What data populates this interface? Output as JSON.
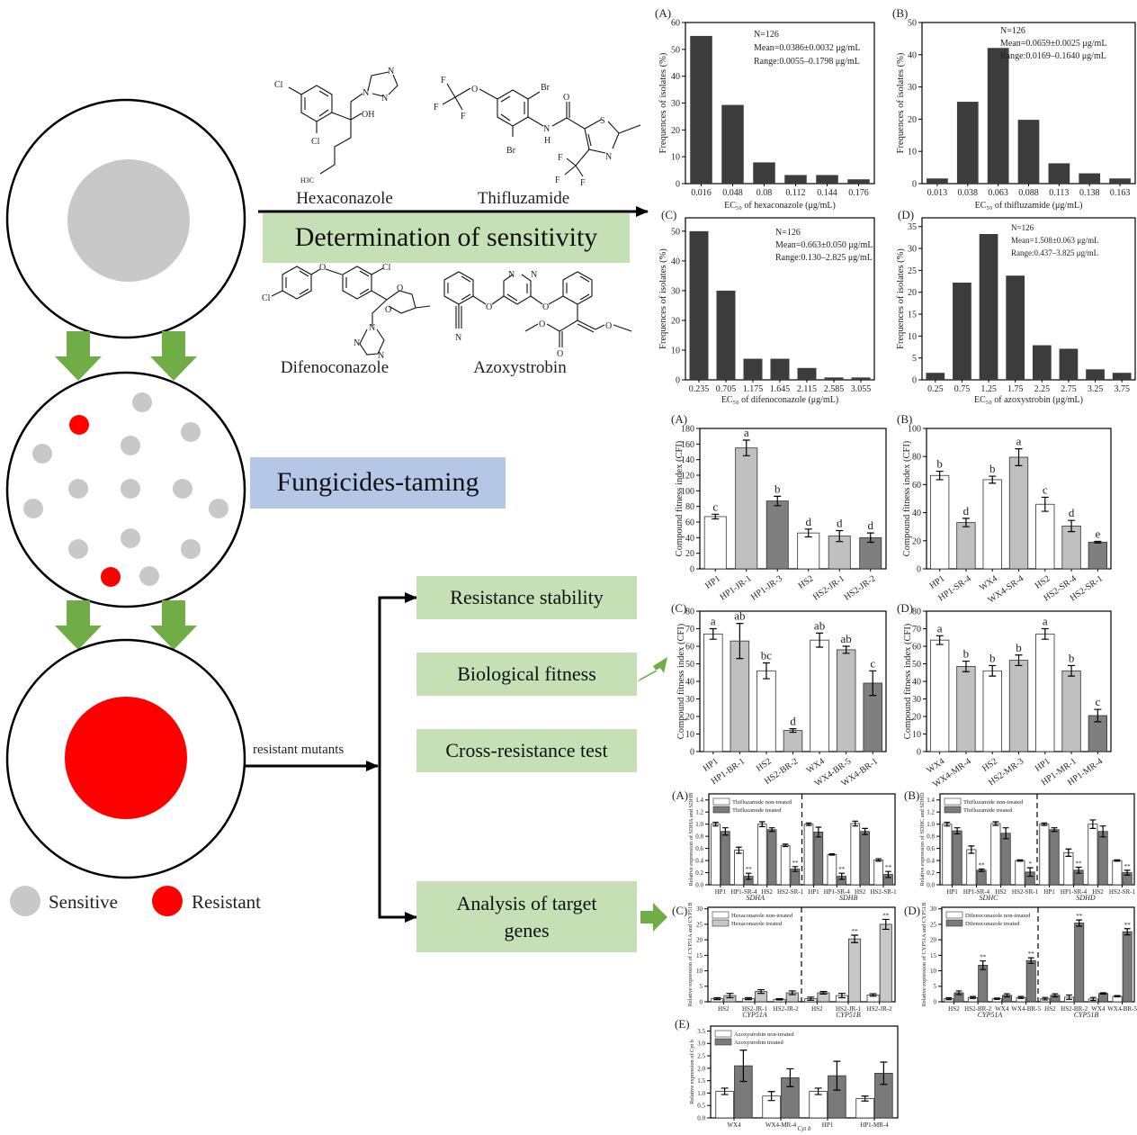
{
  "legend": {
    "sensitive": "Sensitive",
    "resistant": "Resistant"
  },
  "flow": {
    "determination": "Determination of sensitivity",
    "taming": "Fungicides-taming",
    "mutants": "resistant mutants",
    "steps": [
      "Resistance stability",
      "Biological fitness",
      "Cross-resistance test",
      "Analysis of target genes"
    ]
  },
  "colors": {
    "arrow_green": "#70ad47",
    "box_green": "#c5e0b4",
    "box_blue": "#b4c7e7",
    "sensitive_gray": "#c8c8c8",
    "resistant_red": "#ff0000",
    "histogram_bar": "#3c3c3c",
    "bar_light": "#c0c0c0",
    "bar_dark": "#7f7f7f"
  },
  "structures": [
    {
      "name": "Hexaconazole",
      "atoms": [
        "Cl",
        "Cl",
        "OH",
        "N",
        "N",
        "N",
        "H3C"
      ]
    },
    {
      "name": "Thifluzamide",
      "atoms": [
        "F",
        "F",
        "F",
        "O",
        "Br",
        "Br",
        "N",
        "H",
        "O",
        "S",
        "N",
        "F",
        "F",
        "F"
      ]
    },
    {
      "name": "Difenoconazole",
      "atoms": [
        "O",
        "Cl",
        "Cl",
        "O",
        "O",
        "N",
        "N",
        "N"
      ]
    },
    {
      "name": "Azoxystrobin",
      "atoms": [
        "N",
        "O",
        "N",
        "N",
        "O",
        "O",
        "O",
        "O"
      ]
    }
  ],
  "chart_data": [
    {
      "type": "bar",
      "panel": "(A)",
      "categories": [
        "0.016",
        "0.048",
        "0.08",
        "0.112",
        "0.144",
        "0.176"
      ],
      "values": [
        55,
        29.3,
        7.9,
        3.2,
        3.2,
        1.6
      ],
      "bar_color": "#3c3c3c",
      "ylim": [
        0,
        60
      ],
      "yticks": [
        "0",
        "10",
        "20",
        "30",
        "40",
        "50",
        "60"
      ],
      "xlabel": "EC₅₀ of hexaconazole (μg/mL)",
      "ylabel": "Frequences of isolates (%)",
      "annotations": [
        "N=126",
        "Mean=0.0386±0.0032 μg/mL",
        "Range:0.0055–0.1798 μg/mL"
      ]
    },
    {
      "type": "bar",
      "panel": "(B)",
      "categories": [
        "0.013",
        "0.038",
        "0.063",
        "0.088",
        "0.113",
        "0.138",
        "0.163"
      ],
      "values": [
        1.6,
        25.4,
        42.1,
        19.8,
        6.3,
        3.2,
        1.6
      ],
      "bar_color": "#3c3c3c",
      "ylim": [
        0,
        50
      ],
      "yticks": [
        "0",
        "10",
        "20",
        "30",
        "40",
        "50"
      ],
      "xlabel": "EC₅₀ of thifluzamide (μg/mL)",
      "ylabel": "Frequences of isolates (%)",
      "annotations": [
        "N=126",
        "Mean=0.0659±0.0025 μg/mL",
        "Range:0.0169–0.1640 μg/mL"
      ]
    },
    {
      "type": "bar",
      "panel": "(C)",
      "categories": [
        "0.235",
        "0.705",
        "1.175",
        "1.645",
        "2.115",
        "2.585",
        "3.055"
      ],
      "values": [
        50,
        30,
        7.1,
        7.1,
        4,
        0.8,
        0.8
      ],
      "bar_color": "#3c3c3c",
      "ylim": [
        0,
        54.5
      ],
      "yticks": [
        "0",
        "10",
        "20",
        "30",
        "40",
        "50"
      ],
      "xlabel": "EC₅₀ of difenoconazole (μg/mL)",
      "ylabel": "Frequences of isolates (%)",
      "annotations": [
        "N=126",
        "Mean=0.663±0.050 μg/mL",
        "Range:0.130–2.825 μg/mL"
      ]
    },
    {
      "type": "bar",
      "panel": "(D)",
      "categories": [
        "0.25",
        "0.75",
        "1.25",
        "1.75",
        "2.25",
        "2.75",
        "3.25",
        "3.75"
      ],
      "values": [
        1.6,
        22.2,
        33.3,
        23.8,
        7.9,
        7.1,
        2.4,
        1.6
      ],
      "bar_color": "#3c3c3c",
      "ylim": [
        0,
        37
      ],
      "yticks": [
        "0",
        "5",
        "10",
        "15",
        "20",
        "25",
        "30",
        "35"
      ],
      "xlabel": "EC₅₀ of azoxystrobin (μg/mL)",
      "ylabel": "Frequences of isolates (%)",
      "annotations": [
        "N=126",
        "Mean=1.508±0.063 μg/mL",
        "Range:0.437–3.825 μg/mL"
      ]
    },
    {
      "type": "bar",
      "panel": "(A)",
      "categories": [
        "HP1",
        "HP1-JR-1",
        "HP1-JR-3",
        "HS2",
        "HS2-JR-1",
        "HS2-JR-2"
      ],
      "values": [
        67,
        155,
        87,
        46,
        42,
        40
      ],
      "errors": [
        3,
        10,
        6,
        5,
        7,
        6
      ],
      "letters": [
        "c",
        "a",
        "b",
        "d",
        "d",
        "d"
      ],
      "fills": [
        "#ffffff",
        "#c0c0c0",
        "#7f7f7f",
        "#ffffff",
        "#c0c0c0",
        "#7f7f7f"
      ],
      "ylim": [
        0,
        180
      ],
      "yticks": [
        "0",
        "20",
        "40",
        "60",
        "80",
        "100",
        "120",
        "140",
        "160",
        "180"
      ],
      "ylabel": "Compound fitness index (CFI)"
    },
    {
      "type": "bar",
      "panel": "(B)",
      "categories": [
        "HP1",
        "HP1-SR-4",
        "WX4",
        "WX4-SR-4",
        "HS2",
        "HS2-SR-4",
        "HS2-SR-1"
      ],
      "values": [
        66.5,
        33,
        63.5,
        79.5,
        46,
        30.5,
        19
      ],
      "errors": [
        3,
        3,
        2.5,
        6,
        5,
        4,
        0.6
      ],
      "letters": [
        "b",
        "d",
        "b",
        "a",
        "c",
        "d",
        "e"
      ],
      "fills": [
        "#ffffff",
        "#c0c0c0",
        "#ffffff",
        "#c0c0c0",
        "#ffffff",
        "#c0c0c0",
        "#7f7f7f"
      ],
      "ylim": [
        0,
        100
      ],
      "yticks": [
        "0",
        "20",
        "40",
        "60",
        "80",
        "100"
      ],
      "ylabel": "Compound fitness index (CFI)"
    },
    {
      "type": "bar",
      "panel": "(C)",
      "categories": [
        "HP1",
        "HP1-BR-1",
        "HS2",
        "HS2-BR-2",
        "WX4",
        "WX4-BR-5",
        "WX4-BR-1"
      ],
      "values": [
        67,
        63,
        46,
        12,
        63.5,
        58,
        39
      ],
      "errors": [
        3,
        10,
        4.5,
        1,
        4,
        2,
        7
      ],
      "letters": [
        "a",
        "ab",
        "bc",
        "d",
        "ab",
        "ab",
        "c"
      ],
      "fills": [
        "#ffffff",
        "#c0c0c0",
        "#ffffff",
        "#c0c0c0",
        "#ffffff",
        "#c0c0c0",
        "#7f7f7f"
      ],
      "ylim": [
        0,
        80
      ],
      "yticks": [
        "0",
        "10",
        "20",
        "30",
        "40",
        "50",
        "60",
        "70",
        "80"
      ],
      "ylabel": "Compound fitness index (CFI)"
    },
    {
      "type": "bar",
      "panel": "(D)",
      "categories": [
        "WX4",
        "WX4-MR-4",
        "HS2",
        "HS2-MR-3",
        "HP1",
        "HP1-MR-1",
        "HP1-MR-4"
      ],
      "values": [
        63.5,
        48.5,
        46,
        52,
        67,
        46,
        20.5
      ],
      "errors": [
        2.5,
        3,
        3,
        3,
        3,
        3,
        3.5
      ],
      "letters": [
        "a",
        "b",
        "b",
        "b",
        "a",
        "b",
        "c"
      ],
      "fills": [
        "#ffffff",
        "#c0c0c0",
        "#ffffff",
        "#c0c0c0",
        "#ffffff",
        "#c0c0c0",
        "#7f7f7f"
      ],
      "ylim": [
        0,
        80
      ],
      "yticks": [
        "0",
        "10",
        "20",
        "30",
        "40",
        "50",
        "60",
        "70",
        "80"
      ],
      "ylabel": "Compound fitness index (CFI)"
    },
    {
      "type": "bar",
      "panel": "(A)",
      "categories": [
        "HP1",
        "HP1-SR-4",
        "HS2",
        "HS2-SR-1",
        "HP1",
        "HP1-SR-4",
        "HS2",
        "HS2-SR-1"
      ],
      "groups": [
        {
          "label": "SDHA",
          "count": 4
        },
        {
          "label": "SDHB",
          "count": 4
        }
      ],
      "series": [
        {
          "name": "Thifluzamide non-treated",
          "fill": "#ffffff",
          "values": [
            1.0,
            0.57,
            1.0,
            0.65,
            1.0,
            0.5,
            1.01,
            0.41
          ],
          "errors": [
            0.03,
            0.05,
            0.04,
            0.02,
            0.02,
            0.01,
            0.04,
            0.02
          ]
        },
        {
          "name": "Thifluzamide treated",
          "fill": "#7a7a7a",
          "values": [
            0.88,
            0.14,
            0.91,
            0.26,
            0.87,
            0.14,
            0.88,
            0.17
          ],
          "errors": [
            0.06,
            0.05,
            0.03,
            0.04,
            0.08,
            0.05,
            0.05,
            0.05
          ],
          "sig": [
            "",
            "**",
            "",
            "**",
            "",
            "**",
            "",
            "**"
          ]
        }
      ],
      "ylim": [
        0,
        1.5
      ],
      "yticks": [
        "0.0",
        "0.2",
        "0.4",
        "0.6",
        "0.8",
        "1.0",
        "1.2",
        "1.4"
      ],
      "ylabel": "Relative expression of SDHA and SDHB"
    },
    {
      "type": "bar",
      "panel": "(B)",
      "categories": [
        "HP1",
        "HP1-SR-4",
        "HS2",
        "HS2-SR-1",
        "HP1",
        "HP1-SR-4",
        "HS2",
        "HS2-SR-1"
      ],
      "groups": [
        {
          "label": "SDHC",
          "count": 4
        },
        {
          "label": "SDHD",
          "count": 4
        }
      ],
      "series": [
        {
          "name": "Thifluzamide non-treated",
          "fill": "#ffffff",
          "values": [
            1.0,
            0.58,
            1.01,
            0.4,
            1.0,
            0.53,
            1.0,
            0.4
          ],
          "errors": [
            0.03,
            0.06,
            0.03,
            0.01,
            0.02,
            0.06,
            0.07,
            0.01
          ]
        },
        {
          "name": "Thifluzamide treated",
          "fill": "#7a7a7a",
          "values": [
            0.89,
            0.24,
            0.85,
            0.21,
            0.91,
            0.24,
            0.88,
            0.2
          ],
          "errors": [
            0.05,
            0.02,
            0.09,
            0.07,
            0.03,
            0.05,
            0.09,
            0.04
          ],
          "sig": [
            "",
            "**",
            "",
            "*",
            "",
            "**",
            "",
            "**"
          ]
        }
      ],
      "ylim": [
        0,
        1.5
      ],
      "yticks": [
        "0.0",
        "0.2",
        "0.4",
        "0.6",
        "0.8",
        "1.0",
        "1.2",
        "1.4"
      ],
      "ylabel": "Relative expression of SDHC and SDHD"
    },
    {
      "type": "bar",
      "panel": "(C)",
      "categories": [
        "HS2",
        "HS2-JR-1",
        "HS2-JR-2",
        "HS2",
        "HS2-JR-1",
        "HS2-JR-2"
      ],
      "groups": [
        {
          "label": "CYP51A",
          "count": 3
        },
        {
          "label": "CYP51B",
          "count": 3
        }
      ],
      "series": [
        {
          "name": "Hexaconazole non-treated",
          "fill": "#ffffff",
          "values": [
            1.0,
            1.0,
            0.8,
            1.0,
            2.0,
            2.2
          ],
          "errors": [
            0.3,
            0.3,
            0.2,
            0.5,
            0.7,
            0.4
          ]
        },
        {
          "name": "Hexaconazole treated",
          "fill": "#c8c8c8",
          "values": [
            2.0,
            3.3,
            2.9,
            2.9,
            20.3,
            25.0
          ],
          "errors": [
            0.7,
            0.6,
            0.6,
            0.4,
            1.2,
            1.6
          ],
          "sig": [
            "",
            "",
            "",
            "",
            "**",
            "**"
          ]
        }
      ],
      "ylim": [
        0,
        30.5
      ],
      "yticks": [
        "0",
        "5",
        "10",
        "15",
        "20",
        "25",
        "30"
      ],
      "ylabel": "Relative expression of CYP51A and CYP51B"
    },
    {
      "type": "bar",
      "panel": "(D)",
      "categories": [
        "HS2",
        "HS2-BR-2",
        "WX4",
        "WX4-BR-5",
        "HS2",
        "HS2-BR-2",
        "WX4",
        "WX4-BR-5"
      ],
      "groups": [
        {
          "label": "CYP51A",
          "count": 4
        },
        {
          "label": "CYP51B",
          "count": 4
        }
      ],
      "series": [
        {
          "name": "Difenoconazole non-treated",
          "fill": "#ffffff",
          "values": [
            1.0,
            1.4,
            1.0,
            1.4,
            1.0,
            1.5,
            0.9,
            1.8
          ],
          "errors": [
            0.3,
            0.3,
            0.2,
            0.3,
            0.4,
            0.7,
            0.5,
            0.2
          ]
        },
        {
          "name": "Difenoconazole treated",
          "fill": "#7a7a7a",
          "values": [
            2.9,
            11.8,
            2.1,
            13.3,
            2.1,
            25.4,
            2.7,
            22.6
          ],
          "errors": [
            0.6,
            1.4,
            0.5,
            0.9,
            0.5,
            1.0,
            0.2,
            1.0
          ],
          "sig": [
            "",
            "**",
            "",
            "**",
            "",
            "**",
            "",
            "**"
          ]
        }
      ],
      "ylim": [
        0,
        30.5
      ],
      "yticks": [
        "0",
        "5",
        "10",
        "15",
        "20",
        "25",
        "30"
      ],
      "ylabel": "Relative expression of CYP51A and CYP51B"
    },
    {
      "type": "bar",
      "panel": "(E)",
      "categories": [
        "WX4",
        "WX4-MR-4",
        "HP1",
        "HP1-MR-4"
      ],
      "series": [
        {
          "name": "Azoxystrobin non-treated",
          "fill": "#ffffff",
          "values": [
            1.07,
            0.88,
            1.07,
            0.78
          ],
          "errors": [
            0.13,
            0.18,
            0.13,
            0.1
          ]
        },
        {
          "name": "Azoxystrobin treated",
          "fill": "#7a7a7a",
          "values": [
            2.1,
            1.62,
            1.7,
            1.8
          ],
          "errors": [
            0.63,
            0.36,
            0.58,
            0.45
          ]
        }
      ],
      "ylim": [
        0,
        3.7
      ],
      "yticks": [
        "0.0",
        "0.5",
        "1.0",
        "1.5",
        "2.0",
        "2.5",
        "3.0",
        "3.5"
      ],
      "xlabel": "Cyt b",
      "ylabel": "Relative expression of Cyt b"
    }
  ]
}
